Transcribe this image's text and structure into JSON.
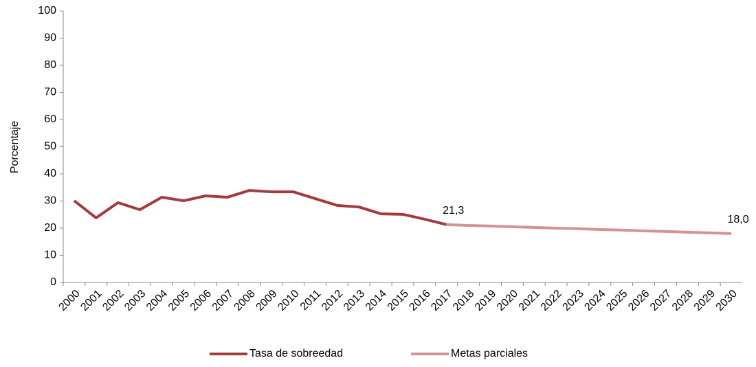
{
  "chart_data": {
    "type": "line",
    "y_label": "Porcentaje",
    "categories": [
      "2000",
      "2001",
      "2002",
      "2003",
      "2004",
      "2005",
      "2006",
      "2007",
      "2008",
      "2009",
      "2010",
      "2011",
      "2012",
      "2013",
      "2014",
      "2015",
      "2016",
      "2017",
      "2018",
      "2019",
      "2020",
      "2021",
      "2022",
      "2023",
      "2024",
      "2025",
      "2026",
      "2027",
      "2028",
      "2029",
      "2030"
    ],
    "series": [
      {
        "name": "Tasa de sobreedad",
        "color": "#a33b3d",
        "values": [
          30.1,
          23.8,
          29.4,
          26.8,
          31.4,
          30.1,
          31.9,
          31.4,
          33.9,
          33.4,
          33.4,
          30.9,
          28.4,
          27.8,
          25.3,
          25.1,
          23.3,
          21.3,
          null,
          null,
          null,
          null,
          null,
          null,
          null,
          null,
          null,
          null,
          null,
          null,
          null
        ]
      },
      {
        "name": "Metas parciales",
        "color": "#d39393",
        "values": [
          null,
          null,
          null,
          null,
          null,
          null,
          null,
          null,
          null,
          null,
          null,
          null,
          null,
          null,
          null,
          null,
          null,
          21.3,
          21.0,
          20.8,
          20.5,
          20.3,
          20.0,
          19.8,
          19.5,
          19.3,
          19.0,
          18.8,
          18.5,
          18.3,
          18.0
        ],
        "value_labels": [
          null,
          null,
          null,
          null,
          null,
          null,
          null,
          null,
          null,
          null,
          null,
          null,
          null,
          null,
          null,
          null,
          null,
          "21,3",
          null,
          null,
          null,
          null,
          null,
          null,
          null,
          null,
          null,
          null,
          null,
          null,
          "18,0"
        ]
      }
    ],
    "ylim": [
      0,
      100
    ],
    "yticks": [
      0,
      10,
      20,
      30,
      40,
      50,
      60,
      70,
      80,
      90,
      100
    ],
    "legend": "bottom"
  }
}
